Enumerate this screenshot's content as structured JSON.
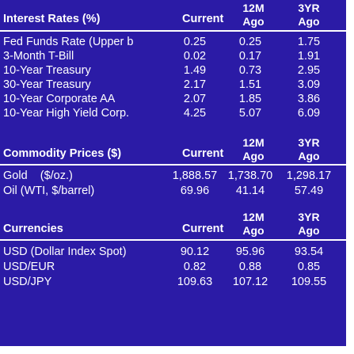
{
  "interest": {
    "title": "Interest Rates (%)",
    "col_current": "Current",
    "col_12m_a": "12M",
    "col_12m_b": "Ago",
    "col_3yr_a": "3YR",
    "col_3yr_b": "Ago",
    "rows": [
      {
        "name": "Fed Funds Rate (Upper b",
        "current": "0.25",
        "m12": "0.25",
        "y3": "1.75"
      },
      {
        "name": "3-Month T-Bill",
        "current": "0.02",
        "m12": "0.17",
        "y3": "1.91"
      },
      {
        "name": "10-Year Treasury",
        "current": "1.49",
        "m12": "0.73",
        "y3": "2.95"
      },
      {
        "name": "30-Year Treasury",
        "current": "2.17",
        "m12": "1.51",
        "y3": "3.09"
      },
      {
        "name": "10-Year Corporate AA",
        "current": "2.07",
        "m12": "1.85",
        "y3": "3.86"
      },
      {
        "name": "10-Year High Yield Corp.",
        "current": "4.25",
        "m12": "5.07",
        "y3": "6.09"
      }
    ]
  },
  "commodity": {
    "title": "Commodity Prices ($)",
    "col_current": "Current",
    "col_12m_a": "12M",
    "col_12m_b": "Ago",
    "col_3yr_a": "3YR",
    "col_3yr_b": "Ago",
    "rows": [
      {
        "name": "Gold    ($/oz.)",
        "current": "1,888.57",
        "m12": "1,738.70",
        "y3": "1,298.17"
      },
      {
        "name": "Oil (WTI, $/barrel)",
        "current": "69.96",
        "m12": "41.14",
        "y3": "57.49"
      }
    ]
  },
  "currencies": {
    "title": "Currencies",
    "col_current": "Current",
    "col_12m_a": "12M",
    "col_12m_b": "Ago",
    "col_3yr_a": "3YR",
    "col_3yr_b": "Ago",
    "rows": [
      {
        "name": "USD (Dollar Index Spot)",
        "current": "90.12",
        "m12": "95.96",
        "y3": "93.54"
      },
      {
        "name": "USD/EUR",
        "current": "0.82",
        "m12": "0.88",
        "y3": "0.85"
      },
      {
        "name": "USD/JPY",
        "current": "109.63",
        "m12": "107.12",
        "y3": "109.55"
      }
    ]
  },
  "colors": {
    "background": "#2b1ba6",
    "text": "#ffffff"
  }
}
